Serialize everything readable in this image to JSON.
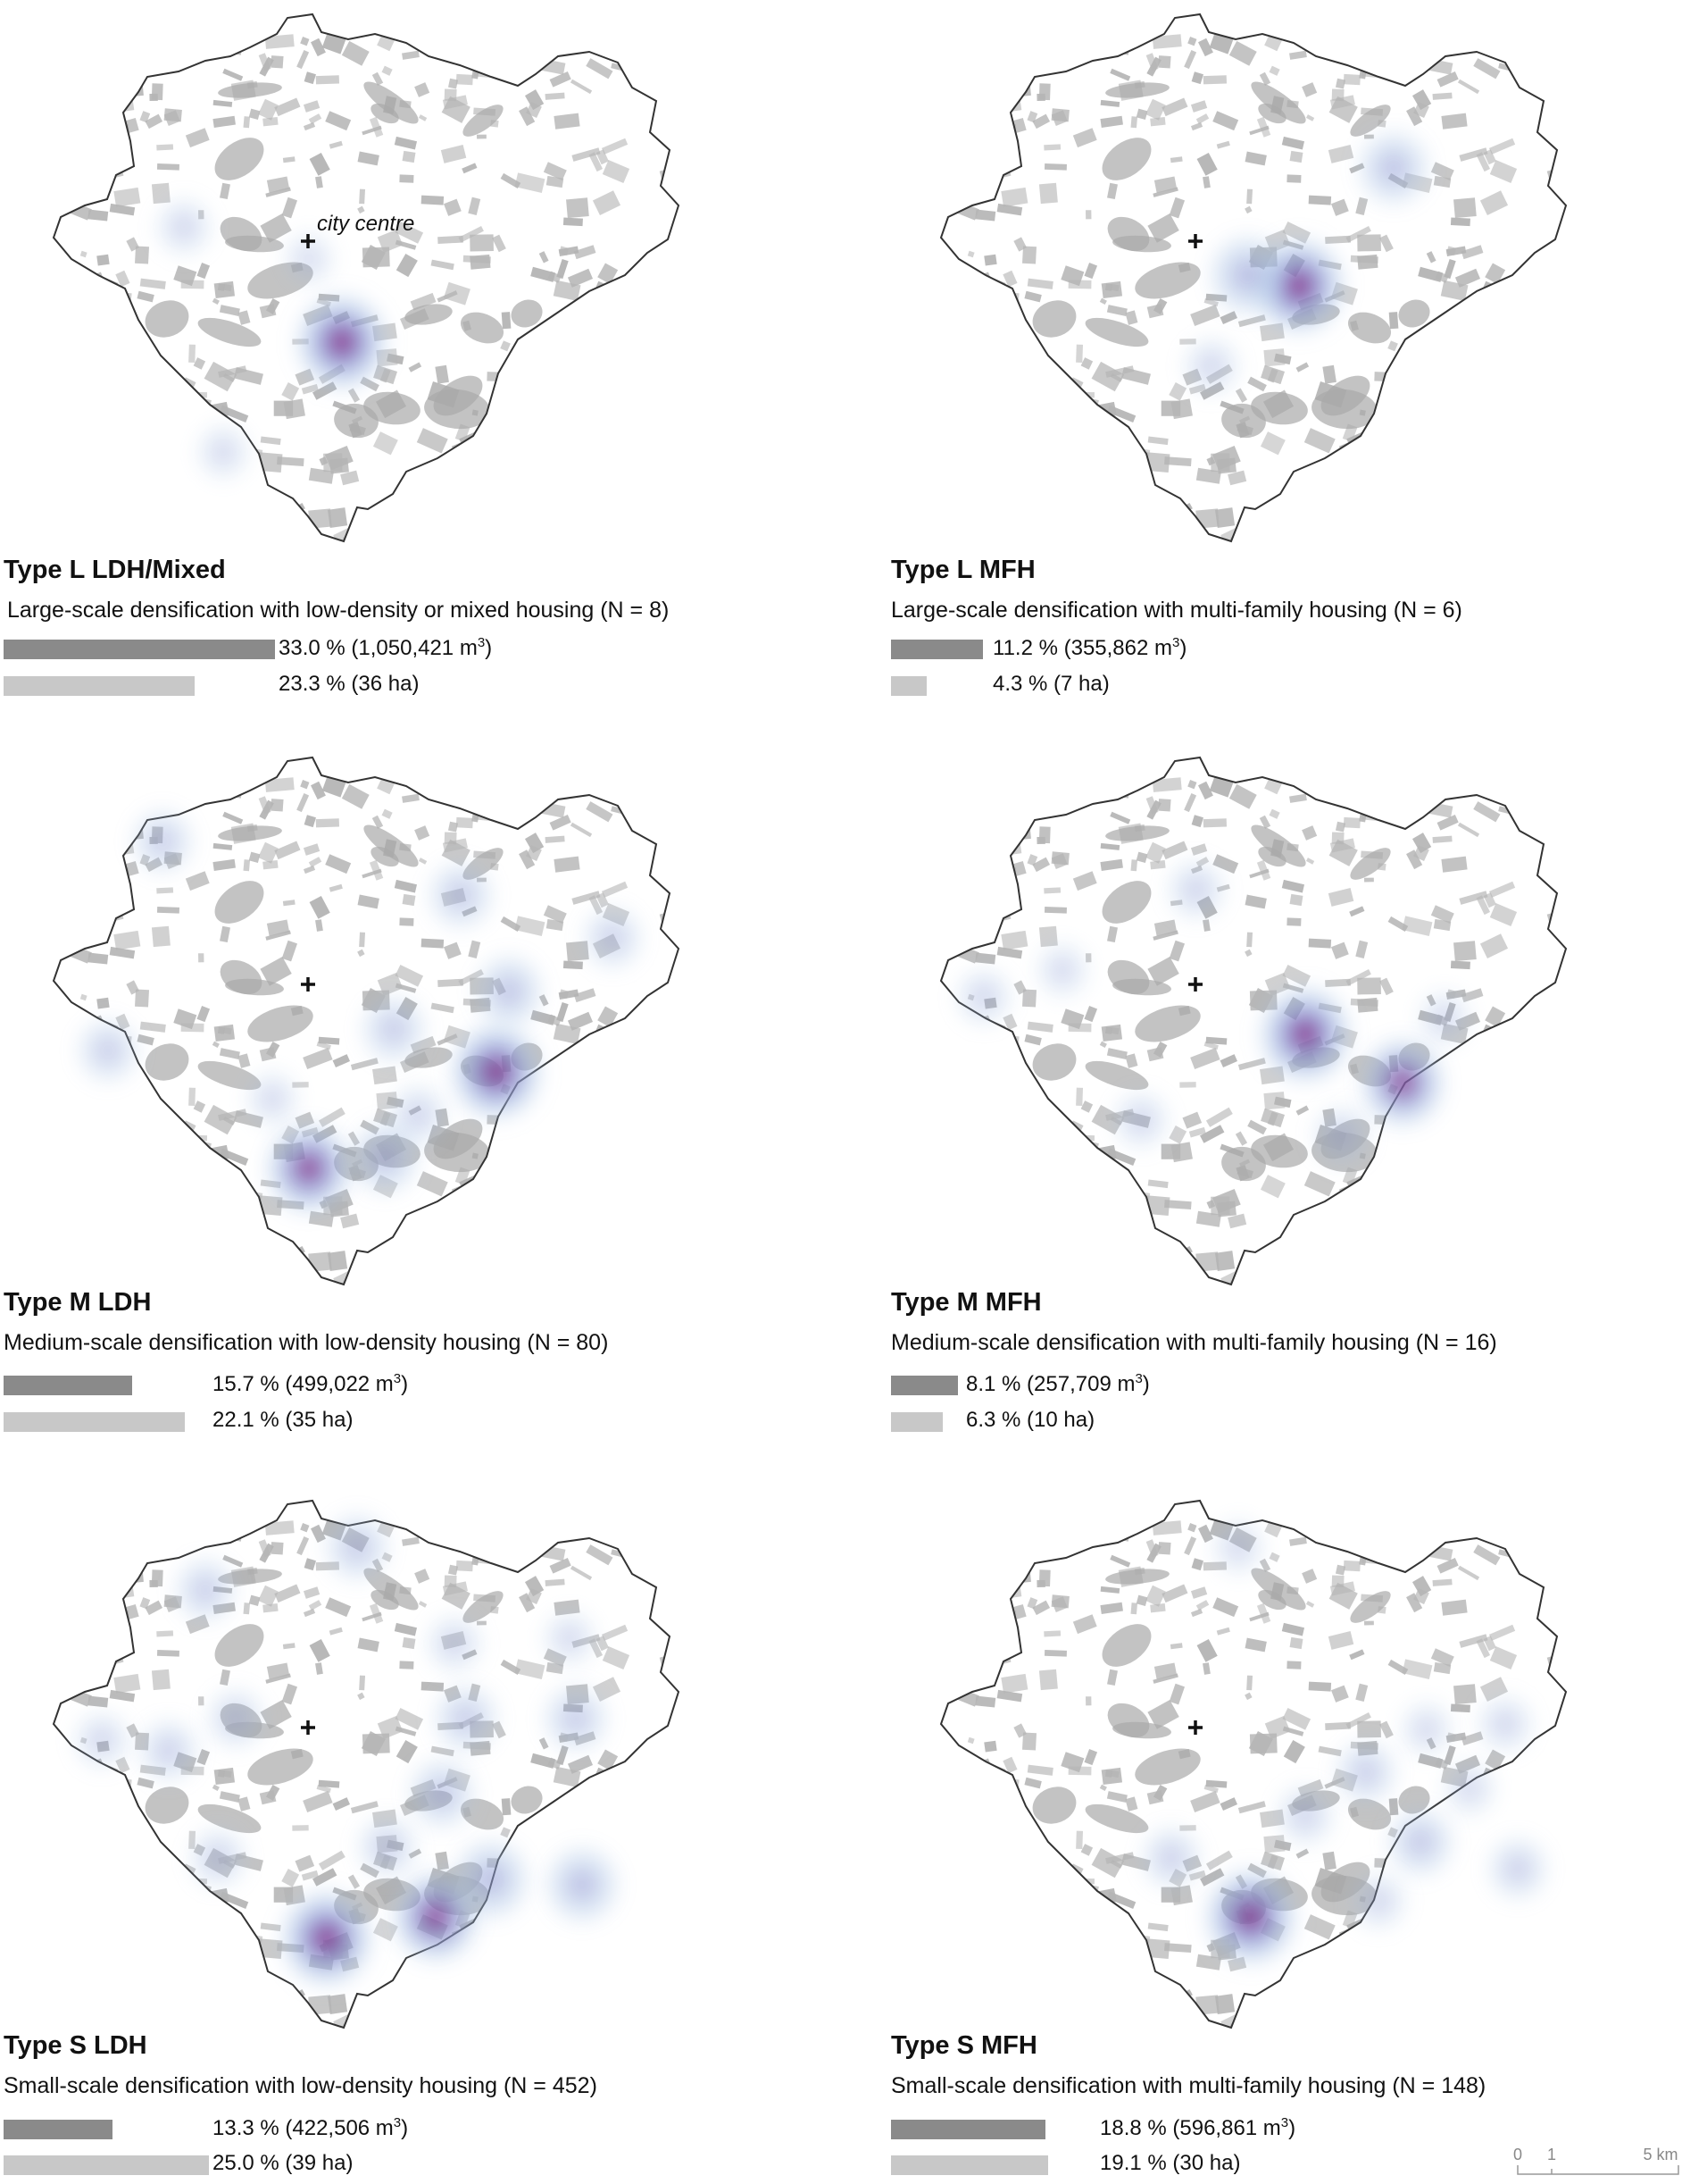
{
  "panels": [
    {
      "title": "Type L LDH/Mixed",
      "subtitle": "Large-scale densification with low-density or mixed housing (N = 8)",
      "volume_share_pct": 33.0,
      "volume_label": "33.0 % (1,050,421 m",
      "volume_sup": "3",
      "volume_close": ")",
      "area_share_pct": 23.3,
      "area_label": "23.3 % (36 ha)",
      "centre_label": "city centre",
      "hotspots": [
        {
          "kx": 0.475,
          "ky": 0.625,
          "intensity": 1.0
        },
        {
          "kx": 0.215,
          "ky": 0.41,
          "intensity": 0.25
        },
        {
          "kx": 0.28,
          "ky": 0.83,
          "intensity": 0.2
        },
        {
          "kx": 0.42,
          "ky": 0.47,
          "intensity": 0.15
        }
      ]
    },
    {
      "title": "Type L MFH",
      "subtitle": "Large-scale densification with multi-family housing (N = 6)",
      "volume_share_pct": 11.2,
      "volume_label": "11.2 % (355,862 m",
      "volume_sup": "3",
      "volume_close": ")",
      "area_share_pct": 4.3,
      "area_label": "4.3 % (7 ha)",
      "centre_label": "",
      "hotspots": [
        {
          "kx": 0.59,
          "ky": 0.52,
          "intensity": 1.0
        },
        {
          "kx": 0.505,
          "ky": 0.5,
          "intensity": 0.7
        },
        {
          "kx": 0.745,
          "ky": 0.3,
          "intensity": 0.6
        },
        {
          "kx": 0.445,
          "ky": 0.67,
          "intensity": 0.25
        }
      ]
    },
    {
      "title": "Type M LDH",
      "subtitle": "Medium-scale densification with low-density housing (N = 80)",
      "volume_share_pct": 15.7,
      "volume_label": "15.7 % (499,022 m",
      "volume_sup": "3",
      "volume_close": ")",
      "area_share_pct": 22.1,
      "area_label": "22.1 % (35 ha)",
      "centre_label": "",
      "hotspots": [
        {
          "kx": 0.73,
          "ky": 0.6,
          "intensity": 1.0
        },
        {
          "kx": 0.42,
          "ky": 0.78,
          "intensity": 0.9
        },
        {
          "kx": 0.545,
          "ky": 0.76,
          "intensity": 0.55
        },
        {
          "kx": 0.75,
          "ky": 0.45,
          "intensity": 0.55
        },
        {
          "kx": 0.67,
          "ky": 0.27,
          "intensity": 0.45
        },
        {
          "kx": 0.56,
          "ky": 0.52,
          "intensity": 0.45
        },
        {
          "kx": 0.18,
          "ky": 0.17,
          "intensity": 0.4
        },
        {
          "kx": 0.09,
          "ky": 0.56,
          "intensity": 0.4
        },
        {
          "kx": 0.92,
          "ky": 0.35,
          "intensity": 0.35
        },
        {
          "kx": 0.6,
          "ky": 0.68,
          "intensity": 0.3
        },
        {
          "kx": 0.36,
          "ky": 0.65,
          "intensity": 0.2
        }
      ]
    },
    {
      "title": "Type M MFH",
      "subtitle": "Medium-scale densification with multi-family housing (N = 16)",
      "volume_share_pct": 8.1,
      "volume_label": "8.1 % (257,709 m",
      "volume_sup": "3",
      "volume_close": ")",
      "area_share_pct": 6.3,
      "area_label": "6.3 % (10 ha)",
      "centre_label": "",
      "hotspots": [
        {
          "kx": 0.6,
          "ky": 0.53,
          "intensity": 1.0
        },
        {
          "kx": 0.76,
          "ky": 0.62,
          "intensity": 0.85
        },
        {
          "kx": 0.42,
          "ky": 0.26,
          "intensity": 0.3
        },
        {
          "kx": 0.07,
          "ky": 0.46,
          "intensity": 0.25
        },
        {
          "kx": 0.2,
          "ky": 0.41,
          "intensity": 0.2
        },
        {
          "kx": 0.33,
          "ky": 0.69,
          "intensity": 0.25
        },
        {
          "kx": 0.66,
          "ky": 0.72,
          "intensity": 0.3
        },
        {
          "kx": 0.83,
          "ky": 0.5,
          "intensity": 0.2
        }
      ]
    },
    {
      "title": "Type S LDH",
      "subtitle": "Small-scale densification with low-density housing (N = 452)",
      "volume_share_pct": 13.3,
      "volume_label": "13.3 % (422,506 m",
      "volume_sup": "3",
      "volume_close": ")",
      "area_share_pct": 25.0,
      "area_label": "25.0 % (39 ha)",
      "centre_label": "",
      "hotspots": [
        {
          "kx": 0.45,
          "ky": 0.83,
          "intensity": 1.0
        },
        {
          "kx": 0.63,
          "ky": 0.79,
          "intensity": 0.9
        },
        {
          "kx": 0.72,
          "ky": 0.72,
          "intensity": 0.7
        },
        {
          "kx": 0.87,
          "ky": 0.73,
          "intensity": 0.65
        },
        {
          "kx": 0.64,
          "ky": 0.56,
          "intensity": 0.5
        },
        {
          "kx": 0.68,
          "ky": 0.42,
          "intensity": 0.45
        },
        {
          "kx": 0.86,
          "ky": 0.42,
          "intensity": 0.45
        },
        {
          "kx": 0.5,
          "ky": 0.1,
          "intensity": 0.45
        },
        {
          "kx": 0.25,
          "ky": 0.18,
          "intensity": 0.4
        },
        {
          "kx": 0.19,
          "ky": 0.48,
          "intensity": 0.35
        },
        {
          "kx": 0.3,
          "ky": 0.42,
          "intensity": 0.3
        },
        {
          "kx": 0.27,
          "ky": 0.68,
          "intensity": 0.3
        },
        {
          "kx": 0.08,
          "ky": 0.46,
          "intensity": 0.25
        },
        {
          "kx": 0.66,
          "ky": 0.28,
          "intensity": 0.25
        },
        {
          "kx": 0.85,
          "ky": 0.27,
          "intensity": 0.2
        },
        {
          "kx": 0.55,
          "ky": 0.66,
          "intensity": 0.35
        }
      ]
    },
    {
      "title": "Type S MFH",
      "subtitle": "Small-scale densification with multi-family housing (N = 148)",
      "volume_share_pct": 18.8,
      "volume_label": "18.8 % (596,861 m",
      "volume_sup": "3",
      "volume_close": ")",
      "area_share_pct": 19.1,
      "area_label": "19.1 % (30 ha)",
      "centre_label": "",
      "hotspots": [
        {
          "kx": 0.51,
          "ky": 0.79,
          "intensity": 1.0
        },
        {
          "kx": 0.79,
          "ky": 0.65,
          "intensity": 0.5
        },
        {
          "kx": 0.7,
          "ky": 0.52,
          "intensity": 0.4
        },
        {
          "kx": 0.38,
          "ky": 0.68,
          "intensity": 0.35
        },
        {
          "kx": 0.95,
          "ky": 0.7,
          "intensity": 0.35
        },
        {
          "kx": 0.6,
          "ky": 0.6,
          "intensity": 0.3
        },
        {
          "kx": 0.93,
          "ky": 0.43,
          "intensity": 0.25
        },
        {
          "kx": 0.49,
          "ky": 0.1,
          "intensity": 0.2
        },
        {
          "kx": 0.8,
          "ky": 0.44,
          "intensity": 0.2
        },
        {
          "kx": 0.72,
          "ky": 0.76,
          "intensity": 0.25
        },
        {
          "kx": 0.87,
          "ky": 0.55,
          "intensity": 0.2
        }
      ]
    }
  ],
  "scale_bar": {
    "tick_0": "0",
    "tick_1": "1",
    "tick_5": "5 km"
  },
  "colors": {
    "outline": "#333333",
    "built_up": "#b4b4b4",
    "hotspot_low": "#a9c4e6",
    "hotspot_mid": "#7f7fc8",
    "hotspot_high": "#8a0a6e",
    "bar_volume": "#8a8a8a",
    "bar_area": "#c8c8c8"
  }
}
